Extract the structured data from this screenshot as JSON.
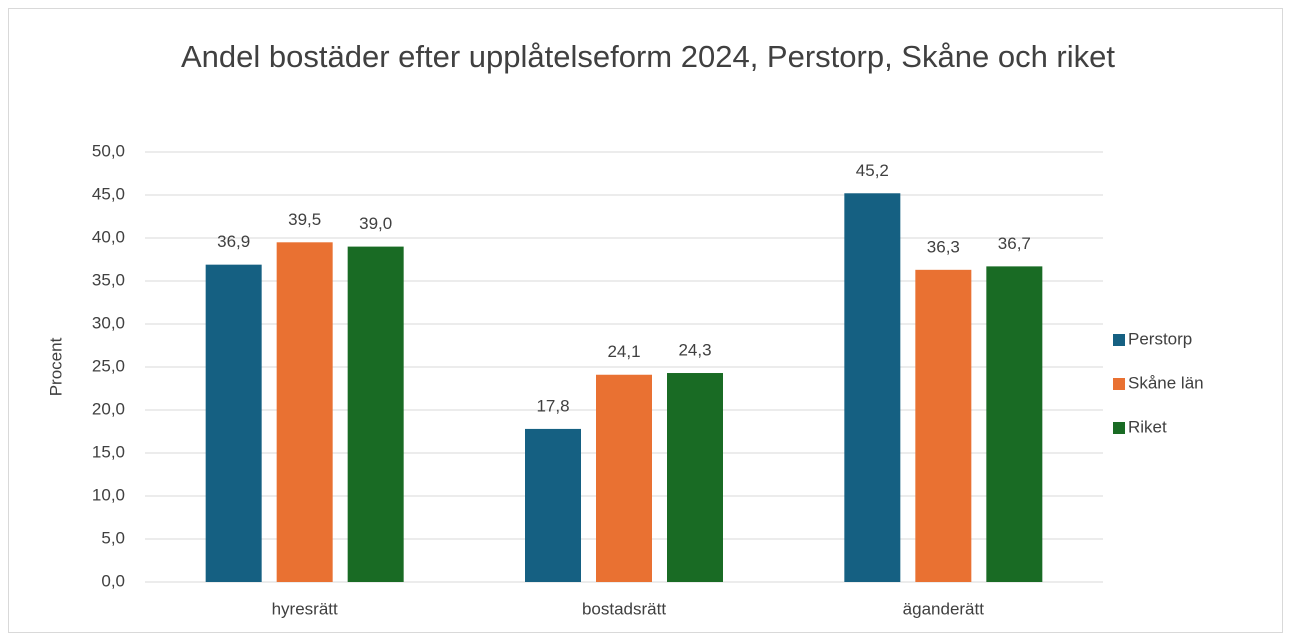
{
  "chart_data": {
    "type": "bar",
    "title": "Andel bostäder efter upplåtelseform 2024, Perstorp, Skåne och riket",
    "y_label": "Procent",
    "categories": [
      "hyresrätt",
      "bostadsrätt",
      "äganderätt"
    ],
    "series": [
      {
        "name": "Perstorp",
        "color": "#156082",
        "values": [
          36.9,
          17.8,
          45.2
        ],
        "value_labels": [
          "36,9",
          "17,8",
          "45,2"
        ]
      },
      {
        "name": "Skåne län",
        "color": "#e97132",
        "values": [
          39.5,
          24.1,
          36.3
        ],
        "value_labels": [
          "39,5",
          "24,1",
          "36,3"
        ]
      },
      {
        "name": "Riket",
        "color": "#196b24",
        "values": [
          39.0,
          24.3,
          36.7
        ],
        "value_labels": [
          "39,0",
          "24,3",
          "36,7"
        ]
      }
    ],
    "ylim": [
      0,
      50
    ],
    "yticks": [
      {
        "value": 0,
        "label": "0,0"
      },
      {
        "value": 5,
        "label": "5,0"
      },
      {
        "value": 10,
        "label": "10,0"
      },
      {
        "value": 15,
        "label": "15,0"
      },
      {
        "value": 20,
        "label": "20,0"
      },
      {
        "value": 25,
        "label": "25,0"
      },
      {
        "value": 30,
        "label": "30,0"
      },
      {
        "value": 35,
        "label": "35,0"
      },
      {
        "value": 40,
        "label": "40,0"
      },
      {
        "value": 45,
        "label": "45,0"
      },
      {
        "value": 50,
        "label": "50,0"
      }
    ],
    "grid": true,
    "legend": "right"
  }
}
